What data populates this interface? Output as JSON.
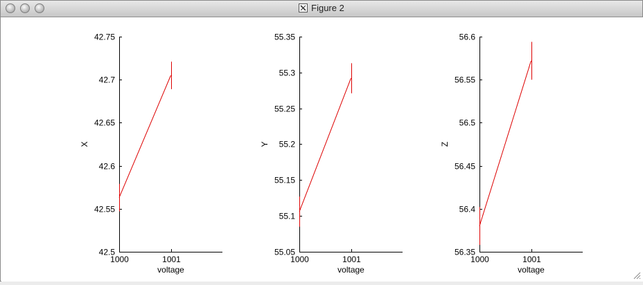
{
  "window": {
    "title": "Figure 2",
    "title_icon": "x11-icon",
    "buttons": [
      "close-button",
      "minimize-button",
      "zoom-button"
    ]
  },
  "colors": {
    "line": "#dd0000",
    "axis": "#000000",
    "background": "#ffffff"
  },
  "chart_data": [
    {
      "type": "line",
      "xlabel": "voltage",
      "ylabel": "X",
      "xlim": [
        1000,
        1002
      ],
      "xticks": [
        1000,
        1001
      ],
      "xtick_labels": [
        "1000",
        "1001"
      ],
      "ylim": [
        42.5,
        42.75
      ],
      "yticks": [
        42.5,
        42.55,
        42.6,
        42.65,
        42.7,
        42.75
      ],
      "ytick_labels": [
        "42.5",
        "42.55",
        "42.6",
        "42.65",
        "42.7",
        "42.75"
      ],
      "grid": false,
      "series": [
        {
          "x": [
            1000,
            1001
          ],
          "y": [
            42.563,
            42.705
          ],
          "yerr": [
            0.016,
            0.016
          ]
        }
      ]
    },
    {
      "type": "line",
      "xlabel": "voltage",
      "ylabel": "Y",
      "xlim": [
        1000,
        1002
      ],
      "xticks": [
        1000,
        1001
      ],
      "xtick_labels": [
        "1000",
        "1001"
      ],
      "ylim": [
        55.05,
        55.35
      ],
      "yticks": [
        55.05,
        55.1,
        55.15,
        55.2,
        55.25,
        55.3,
        55.35
      ],
      "ytick_labels": [
        "55.05",
        "55.1",
        "55.15",
        "55.2",
        "55.25",
        "55.3",
        "55.35"
      ],
      "grid": false,
      "series": [
        {
          "x": [
            1000,
            1001
          ],
          "y": [
            55.106,
            55.292
          ],
          "yerr": [
            0.021,
            0.021
          ]
        }
      ]
    },
    {
      "type": "line",
      "xlabel": "voltage",
      "ylabel": "Z",
      "xlim": [
        1000,
        1002
      ],
      "xticks": [
        1000,
        1001
      ],
      "xtick_labels": [
        "1000",
        "1001"
      ],
      "ylim": [
        56.35,
        56.6
      ],
      "yticks": [
        56.35,
        56.4,
        56.45,
        56.5,
        56.55,
        56.6
      ],
      "ytick_labels": [
        "56.35",
        "56.4",
        "56.45",
        "56.5",
        "56.55",
        "56.6"
      ],
      "grid": false,
      "series": [
        {
          "x": [
            1000,
            1001
          ],
          "y": [
            56.38,
            56.572
          ],
          "yerr": [
            0.022,
            0.022
          ]
        }
      ]
    }
  ]
}
